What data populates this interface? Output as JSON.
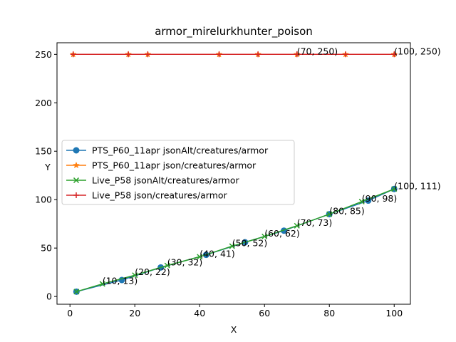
{
  "chart_data": {
    "type": "line",
    "title": "armor_mirelurkhunter_poison",
    "xlabel": "X",
    "ylabel": "Y",
    "xlim": [
      -4,
      105
    ],
    "ylim": [
      -8,
      262
    ],
    "xticks": [
      0,
      20,
      40,
      60,
      80,
      100
    ],
    "yticks": [
      0,
      50,
      100,
      150,
      200,
      250
    ],
    "grid": false,
    "legend_position": "center-left",
    "series": [
      {
        "name": "PTS_P60_11apr jsonAlt/creatures/armor",
        "color": "#1f77b4",
        "marker": "circle",
        "x": [
          2,
          16,
          28,
          42,
          54,
          66,
          80,
          92,
          100
        ],
        "y": [
          5,
          17,
          30,
          43,
          56,
          68,
          85,
          99,
          111
        ]
      },
      {
        "name": "PTS_P60_11apr json/creatures/armor",
        "color": "#ff7f0e",
        "marker": "star",
        "x": [
          1,
          18,
          24,
          46,
          58,
          70,
          85,
          100
        ],
        "y": [
          250,
          250,
          250,
          250,
          250,
          250,
          250,
          250
        ]
      },
      {
        "name": "Live_P58 jsonAlt/creatures/armor",
        "color": "#2ca02c",
        "marker": "x",
        "x": [
          2,
          10,
          20,
          30,
          40,
          50,
          60,
          70,
          80,
          90,
          100
        ],
        "y": [
          5,
          13,
          22,
          32,
          41,
          52,
          62,
          73,
          85,
          98,
          111
        ]
      },
      {
        "name": "Live_P58 json/creatures/armor",
        "color": "#d62728",
        "marker": "plus",
        "x": [
          1,
          18,
          24,
          46,
          58,
          70,
          85,
          100
        ],
        "y": [
          250,
          250,
          250,
          250,
          250,
          250,
          250,
          250
        ]
      }
    ],
    "annotations": [
      {
        "text": "(10, 13)",
        "x": 10,
        "y": 13
      },
      {
        "text": "(20, 22)",
        "x": 20,
        "y": 22
      },
      {
        "text": "(30, 32)",
        "x": 30,
        "y": 32
      },
      {
        "text": "(40, 41)",
        "x": 40,
        "y": 41
      },
      {
        "text": "(50, 52)",
        "x": 50,
        "y": 52
      },
      {
        "text": "(60, 62)",
        "x": 60,
        "y": 62
      },
      {
        "text": "(70, 73)",
        "x": 70,
        "y": 73
      },
      {
        "text": "(80, 85)",
        "x": 80,
        "y": 85
      },
      {
        "text": "(90, 98)",
        "x": 90,
        "y": 98
      },
      {
        "text": "(100, 111)",
        "x": 100,
        "y": 111
      },
      {
        "text": "(70, 250)",
        "x": 70,
        "y": 250
      },
      {
        "text": "(100, 250)",
        "x": 100,
        "y": 250
      }
    ]
  }
}
